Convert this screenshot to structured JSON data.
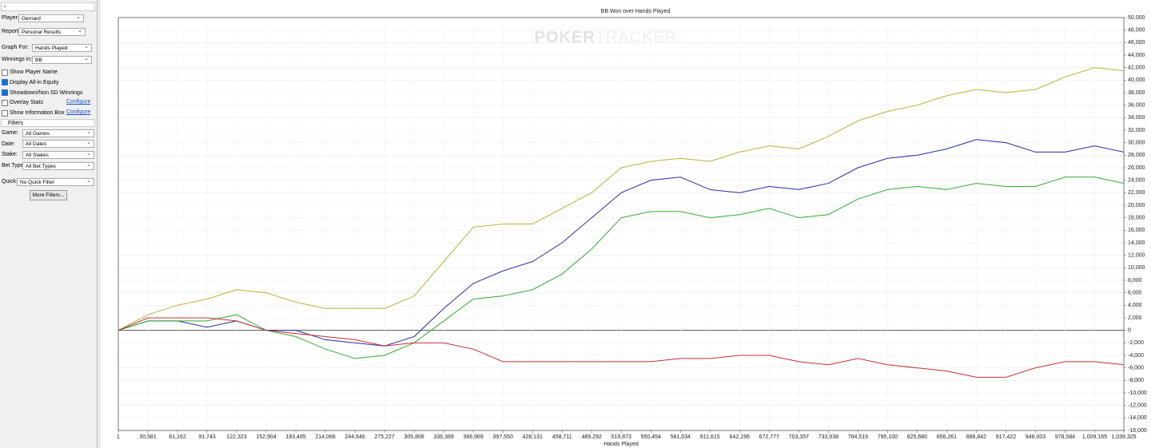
{
  "sidebar": {
    "player": {
      "label": "Player:",
      "value": "Gernard"
    },
    "report": {
      "label": "Report:",
      "value": "Personal Results"
    },
    "graph_for": {
      "label": "Graph For:",
      "value": "Hands Played"
    },
    "winnings_in": {
      "label": "Winnings in:",
      "value": "BB"
    },
    "checkboxes": [
      {
        "label": "Show Player Name",
        "checked": false
      },
      {
        "label": "Display All-in Equity",
        "checked": true
      },
      {
        "label": "Showdown/Non SD Winnings",
        "checked": true
      },
      {
        "label": "Overlay Stats",
        "checked": false,
        "link": "Configure"
      },
      {
        "label": "Show Information Box",
        "checked": false,
        "link": "Configure"
      }
    ],
    "filters_title": "Filters",
    "filters": [
      {
        "label": "Game:",
        "value": "All Games"
      },
      {
        "label": "Date:",
        "value": "All Dates"
      },
      {
        "label": "Stake:",
        "value": "All Stakes"
      },
      {
        "label": "Bet Type:",
        "value": "All Bet Types"
      }
    ],
    "quick": {
      "label": "Quick:",
      "value": "No Quick Filter"
    },
    "more_filters": "More Filters..."
  },
  "chart_data": {
    "type": "line",
    "title": "BB Won over Hands Played",
    "x_label": "Hands Played",
    "watermark": [
      "POKER",
      "TRACKER"
    ],
    "x": [
      1,
      30581,
      61162,
      91743,
      122323,
      152904,
      183485,
      214066,
      244646,
      275227,
      305808,
      336389,
      366969,
      397550,
      428131,
      458711,
      489292,
      519873,
      550454,
      581034,
      611615,
      642196,
      672777,
      703357,
      733938,
      764519,
      795100,
      825680,
      856261,
      886842,
      917422,
      948003,
      978584,
      1009165,
      1039325
    ],
    "series": [
      {
        "color": "#b4b43c",
        "values": [
          0,
          2500,
          4000,
          5000,
          6500,
          6000,
          4500,
          3500,
          3500,
          3500,
          5500,
          11000,
          16500,
          17000,
          17000,
          19500,
          22000,
          26000,
          27000,
          27500,
          27000,
          28500,
          29500,
          29000,
          31000,
          33500,
          35000,
          36000,
          37500,
          38500,
          38000,
          38500,
          40500,
          42000,
          41500
        ]
      },
      {
        "color": "#2b2ba0",
        "values": [
          0,
          1500,
          1500,
          500,
          1500,
          0,
          0,
          -1500,
          -2000,
          -2500,
          -1000,
          3500,
          7500,
          9500,
          11000,
          14000,
          18000,
          22000,
          24000,
          24500,
          22500,
          22000,
          23000,
          22500,
          23500,
          26000,
          27500,
          28000,
          29000,
          30500,
          30000,
          28500,
          28500,
          29500,
          28500
        ]
      },
      {
        "color": "#35a835",
        "values": [
          0,
          1500,
          1500,
          1500,
          2500,
          0,
          -1000,
          -3000,
          -4500,
          -4000,
          -2000,
          1500,
          5000,
          5500,
          6500,
          9000,
          13000,
          18000,
          19000,
          19000,
          18000,
          18500,
          19500,
          18000,
          18500,
          21000,
          22500,
          23000,
          22500,
          23500,
          23000,
          23000,
          24500,
          24500,
          23500
        ]
      },
      {
        "color": "#c03030",
        "values": [
          0,
          2000,
          2000,
          2000,
          1500,
          0,
          -500,
          -1000,
          -1500,
          -2500,
          -2000,
          -2000,
          -3000,
          -5000,
          -5000,
          -5000,
          -5000,
          -5000,
          -5000,
          -4500,
          -4500,
          -4000,
          -4000,
          -5000,
          -5500,
          -4500,
          -5500,
          -6000,
          -6500,
          -7500,
          -7500,
          -6000,
          -5000,
          -5000,
          -5500
        ]
      }
    ],
    "xlim": [
      1,
      1039325
    ],
    "xticks": [
      1,
      {
        "value": 30581,
        "label": "30,581"
      },
      {
        "value": 61162,
        "label": "61,162"
      },
      {
        "value": 91743,
        "label": "91,743"
      },
      {
        "value": 122323,
        "label": "122,323"
      },
      {
        "value": 152904,
        "label": "152,904"
      },
      {
        "value": 183485,
        "label": "183,485"
      },
      {
        "value": 214066,
        "label": "214,066"
      },
      {
        "value": 244646,
        "label": "244,646"
      },
      {
        "value": 275227,
        "label": "275,227"
      },
      {
        "value": 305808,
        "label": "305,808"
      },
      {
        "value": 336389,
        "label": "336,389"
      },
      {
        "value": 366969,
        "label": "366,969"
      },
      {
        "value": 397550,
        "label": "397,550"
      },
      {
        "value": 428131,
        "label": "428,131"
      },
      {
        "value": 458711,
        "label": "458,711"
      },
      {
        "value": 489292,
        "label": "489,292"
      },
      {
        "value": 519873,
        "label": "519,873"
      },
      {
        "value": 550454,
        "label": "550,454"
      },
      {
        "value": 581034,
        "label": "581,034"
      },
      {
        "value": 611615,
        "label": "611,615"
      },
      {
        "value": 642196,
        "label": "642,196"
      },
      {
        "value": 672777,
        "label": "672,777"
      },
      {
        "value": 703357,
        "label": "703,357"
      },
      {
        "value": 733938,
        "label": "733,938"
      },
      {
        "value": 764519,
        "label": "764,519"
      },
      {
        "value": 795100,
        "label": "795,100"
      },
      {
        "value": 825680,
        "label": "825,680"
      },
      {
        "value": 856261,
        "label": "856,261"
      },
      {
        "value": 886842,
        "label": "886,842"
      },
      {
        "value": 917422,
        "label": "917,422"
      },
      {
        "value": 948003,
        "label": "948,003"
      },
      {
        "value": 978584,
        "label": "978,584"
      },
      {
        "value": 1009165,
        "label": "1,009,165"
      },
      {
        "value": 1039325,
        "label": "1,039,325"
      }
    ],
    "ylim": [
      -16000,
      50000
    ],
    "yticks": [
      {
        "value": -16000,
        "label": "-16,000"
      },
      {
        "value": -14000,
        "label": "-14,000"
      },
      {
        "value": -12000,
        "label": "-12,000"
      },
      {
        "value": -10000,
        "label": "-10,000"
      },
      {
        "value": -8000,
        "label": "-8,000"
      },
      {
        "value": -6000,
        "label": "-6,000"
      },
      {
        "value": -4000,
        "label": "-4,000"
      },
      {
        "value": -2000,
        "label": "-2,000"
      },
      0,
      {
        "value": 2000,
        "label": "2,000"
      },
      {
        "value": 4000,
        "label": "4,000"
      },
      {
        "value": 6000,
        "label": "6,000"
      },
      {
        "value": 8000,
        "label": "8,000"
      },
      {
        "value": 10000,
        "label": "10,000"
      },
      {
        "value": 12000,
        "label": "12,000"
      },
      {
        "value": 14000,
        "label": "14,000"
      },
      {
        "value": 16000,
        "label": "16,000"
      },
      {
        "value": 18000,
        "label": "18,000"
      },
      {
        "value": 20000,
        "label": "20,000"
      },
      {
        "value": 22000,
        "label": "22,000"
      },
      {
        "value": 24000,
        "label": "24,000"
      },
      {
        "value": 26000,
        "label": "26,000"
      },
      {
        "value": 28000,
        "label": "28,000"
      },
      {
        "value": 30000,
        "label": "30,000"
      },
      {
        "value": 32000,
        "label": "32,000"
      },
      {
        "value": 34000,
        "label": "34,000"
      },
      {
        "value": 36000,
        "label": "36,000"
      },
      {
        "value": 38000,
        "label": "38,000"
      },
      {
        "value": 40000,
        "label": "40,000"
      },
      {
        "value": 42000,
        "label": "42,000"
      },
      {
        "value": 44000,
        "label": "44,000"
      },
      {
        "value": 46000,
        "label": "46,000"
      },
      {
        "value": 48000,
        "label": "48,000"
      },
      {
        "value": 50000,
        "label": "50,000"
      }
    ],
    "grid": true,
    "y_axis_side": "right"
  }
}
